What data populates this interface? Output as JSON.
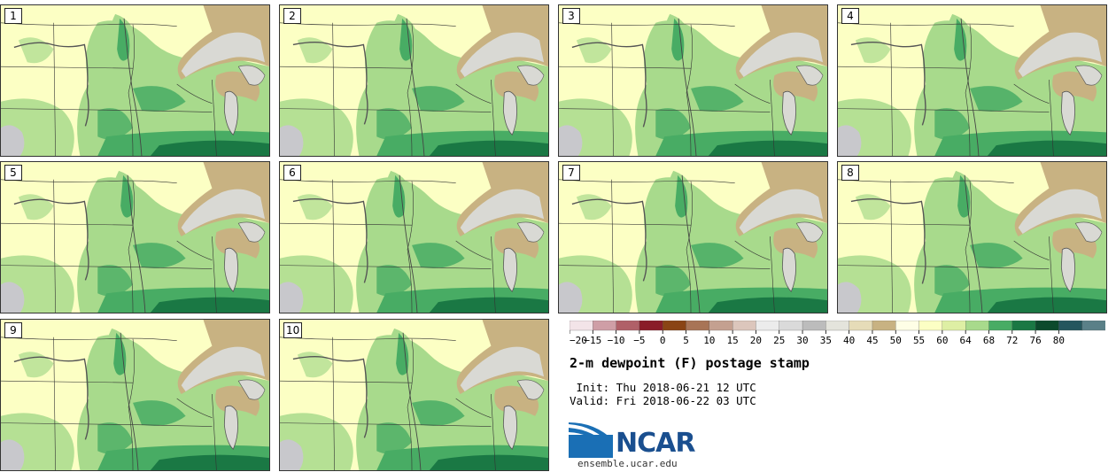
{
  "title": "2-m dewpoint (F) postage stamp",
  "init": " Init: Thu 2018-06-21 12 UTC",
  "valid": "Valid: Fri 2018-06-22 03 UTC",
  "logo": {
    "name": "NCAR",
    "url": "ensemble.ucar.edu"
  },
  "panels": [
    {
      "label": "1"
    },
    {
      "label": "2"
    },
    {
      "label": "3"
    },
    {
      "label": "4"
    },
    {
      "label": "5"
    },
    {
      "label": "6"
    },
    {
      "label": "7"
    },
    {
      "label": "8"
    },
    {
      "label": "9"
    },
    {
      "label": "10"
    }
  ],
  "colorbar": {
    "ticks": [
      "−20",
      "−15",
      "−10",
      "−5",
      "0",
      "5",
      "10",
      "15",
      "20",
      "25",
      "30",
      "35",
      "40",
      "45",
      "50",
      "55",
      "60",
      "64",
      "68",
      "72",
      "76",
      "80"
    ],
    "colors": [
      "#f3e4e8",
      "#cf9ea6",
      "#b06068",
      "#8a1c28",
      "#8a4414",
      "#a87456",
      "#c4a090",
      "#dcc6bc",
      "#ececec",
      "#dadada",
      "#bcbcbc",
      "#e4e4dc",
      "#e6dcb8",
      "#c8b282",
      "#fefee6",
      "#fcffc4",
      "#deefa4",
      "#a8da8c",
      "#48ac64",
      "#1a7844",
      "#0c4a2c",
      "#24565e",
      "#5a8088"
    ]
  },
  "colors": {
    "light_yellow": "#fcffc4",
    "light_green": "#a8da8c",
    "mid_green": "#48ac64",
    "dark_green": "#1a7844",
    "tan": "#c8b282",
    "gray": "#d9d9d4"
  }
}
